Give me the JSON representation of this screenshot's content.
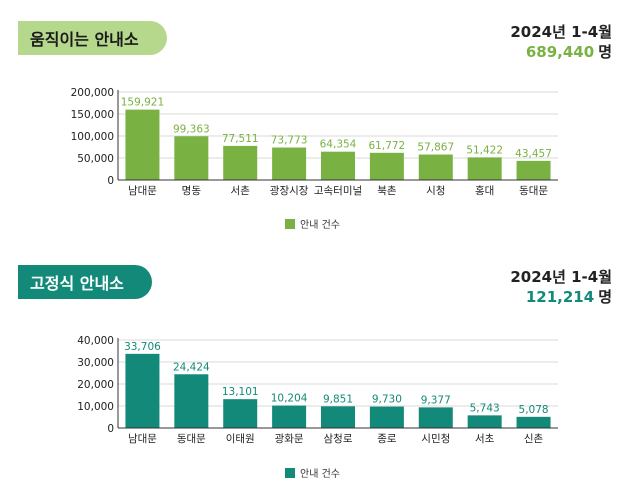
{
  "colors": {
    "green": "#79b142",
    "green_pill": "#b5d88d",
    "teal": "#138a79",
    "axis": "#333333",
    "grid": "#d9d9d9"
  },
  "sections": [
    {
      "title": "움직이는 안내소",
      "period": "2024년 1-4월",
      "total": "689,440",
      "total_unit": "명",
      "legend": "안내 건수"
    },
    {
      "title": "고정식 안내소",
      "period": "2024년 1-4월",
      "total": "121,214",
      "total_unit": "명",
      "legend": "안내 건수"
    }
  ],
  "chart_data": [
    {
      "type": "bar",
      "categories": [
        "남대문",
        "명동",
        "서촌",
        "광장시장",
        "고속터미널",
        "북촌",
        "시청",
        "홍대",
        "동대문"
      ],
      "series": [
        {
          "name": "안내 건수",
          "values": [
            159921,
            99363,
            77511,
            73773,
            64354,
            61772,
            57867,
            51422,
            43457
          ]
        }
      ],
      "data_labels": [
        "159,921",
        "99,363",
        "77,511",
        "73,773",
        "64,354",
        "61,772",
        "57,867",
        "51,422",
        "43,457"
      ],
      "y_ticks": [
        "0",
        "50,000",
        "100,000",
        "150,000",
        "200,000"
      ],
      "ylim": [
        0,
        200000
      ],
      "grid": true,
      "legend": "bottom-center",
      "color": "#79b142"
    },
    {
      "type": "bar",
      "categories": [
        "남대문",
        "동대문",
        "이태원",
        "광화문",
        "삼청로",
        "종로",
        "시민청",
        "서초",
        "신촌"
      ],
      "series": [
        {
          "name": "안내 건수",
          "values": [
            33706,
            24424,
            13101,
            10204,
            9851,
            9730,
            9377,
            5743,
            5078
          ]
        }
      ],
      "data_labels": [
        "33,706",
        "24,424",
        "13,101",
        "10,204",
        "9,851",
        "9,730",
        "9,377",
        "5,743",
        "5,078"
      ],
      "y_ticks": [
        "0",
        "10,000",
        "20,000",
        "30,000",
        "40,000"
      ],
      "ylim": [
        0,
        40000
      ],
      "grid": true,
      "legend": "bottom-center",
      "color": "#138a79"
    }
  ]
}
